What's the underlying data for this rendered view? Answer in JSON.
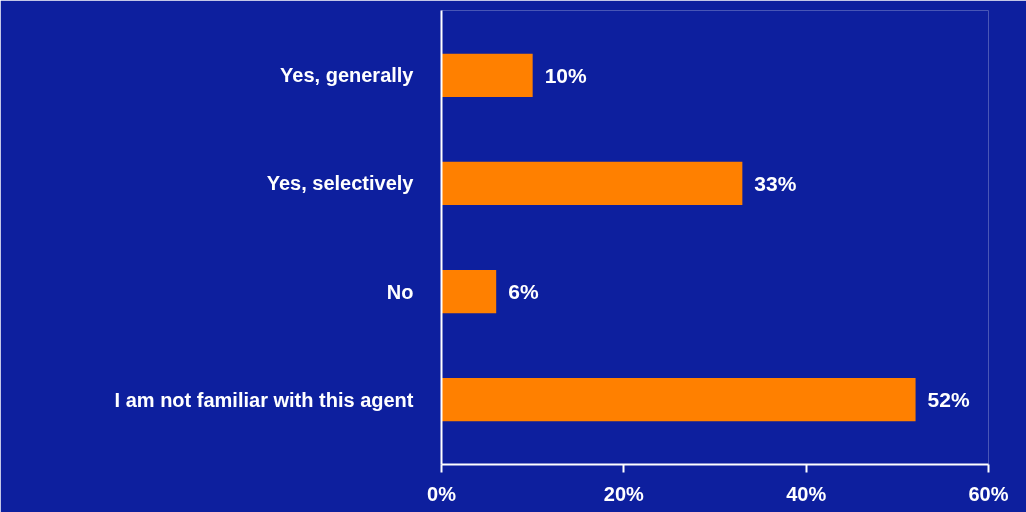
{
  "chart_data": {
    "type": "bar",
    "orientation": "horizontal",
    "categories": [
      "Yes, generally",
      "Yes, selectively",
      "No",
      "I am not familiar with this agent"
    ],
    "values": [
      10,
      33,
      6,
      52
    ],
    "value_labels": [
      "10%",
      "33%",
      "6%",
      "52%"
    ],
    "color": "#ff8000",
    "xlim": [
      0,
      60
    ],
    "xticks": [
      {
        "value": 0,
        "label": "0%"
      },
      {
        "value": 20,
        "label": "20%"
      },
      {
        "value": 40,
        "label": "40%"
      },
      {
        "value": 60,
        "label": "60%"
      }
    ],
    "grid": false
  }
}
